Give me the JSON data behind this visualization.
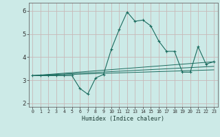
{
  "title": "",
  "xlabel": "Humidex (Indice chaleur)",
  "xlim": [
    -0.5,
    23.5
  ],
  "ylim": [
    1.85,
    6.35
  ],
  "yticks": [
    2,
    3,
    4,
    5,
    6
  ],
  "xtick_labels": [
    "0",
    "1",
    "2",
    "3",
    "4",
    "5",
    "6",
    "7",
    "8",
    "9",
    "10",
    "11",
    "12",
    "13",
    "14",
    "15",
    "16",
    "17",
    "18",
    "19",
    "20",
    "21",
    "22",
    "23"
  ],
  "bg_color": "#cceae7",
  "grid_color": "#c8b8b8",
  "line_color": "#1a6b5e",
  "line1_x": [
    0,
    1,
    2,
    3,
    4,
    5,
    6,
    7,
    8,
    9,
    10,
    11,
    12,
    13,
    14,
    15,
    16,
    17,
    18,
    19,
    20,
    21,
    22,
    23
  ],
  "line1_y": [
    3.2,
    3.2,
    3.2,
    3.2,
    3.2,
    3.2,
    2.65,
    2.4,
    3.1,
    3.25,
    4.35,
    5.2,
    5.95,
    5.55,
    5.6,
    5.35,
    4.7,
    4.25,
    4.25,
    3.35,
    3.35,
    4.45,
    3.7,
    3.8
  ],
  "line2_x": [
    0,
    23
  ],
  "line2_y": [
    3.2,
    3.8
  ],
  "line3_x": [
    0,
    23
  ],
  "line3_y": [
    3.2,
    3.6
  ],
  "line4_x": [
    0,
    23
  ],
  "line4_y": [
    3.2,
    3.45
  ]
}
